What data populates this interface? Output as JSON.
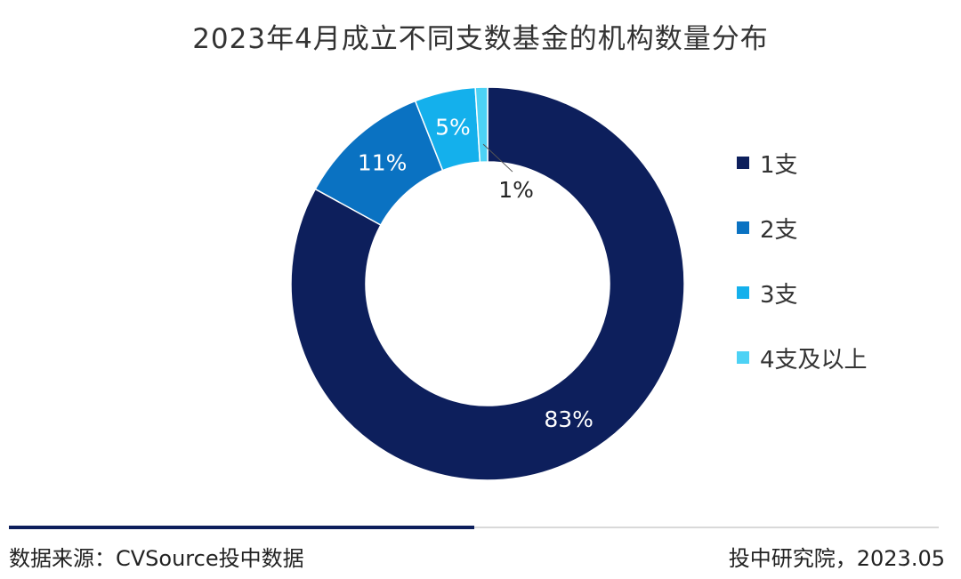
{
  "chart_data": {
    "type": "pie",
    "title": "2023年4月成立不同支数基金的机构数量分布",
    "categories": [
      "1支",
      "2支",
      "3支",
      "4支及以上"
    ],
    "values": [
      83,
      11,
      5,
      1
    ],
    "value_labels": [
      "83%",
      "11%",
      "5%",
      "1%"
    ],
    "colors": [
      "#0d1f5c",
      "#0a72c2",
      "#14b0ec",
      "#4dd2f5"
    ],
    "label_colors": [
      "#ffffff",
      "#ffffff",
      "#ffffff",
      "#222222"
    ],
    "legend_position": "right"
  },
  "footer": {
    "source": "数据来源：CVSource投中数据",
    "publisher": "投中研究院，2023.05"
  }
}
